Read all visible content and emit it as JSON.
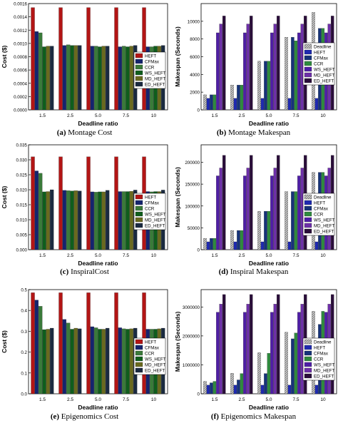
{
  "colors": {
    "HEFT": "#b31515",
    "CFMax": "#15246e",
    "CCR": "#3a7a3a",
    "WS_HEFT": "#0f5e1c",
    "MD_HEFT": "#6a6a1f",
    "ED_HEFT": "#1a2a40",
    "Deadline": "#b8b8b8",
    "HEFT_makespan": "#1f2ab0",
    "CFMax_makespan": "#16337a",
    "CCR_makespan": "#2e8b3e",
    "WS_HEFT_makespan": "#4f1ea6",
    "MD_HEFT_makespan": "#6d2fa8",
    "ED_HEFT_makespan": "#2a0d3a"
  },
  "chart_data": [
    {
      "type": "bar",
      "panel_letter": "(a)",
      "caption": "Montage Cost",
      "xlabel": "Deadline ratio",
      "ylabel": "Cost ($)",
      "categories": [
        "1.5",
        "2.5",
        "5.0",
        "7.5",
        "10"
      ],
      "ylim": [
        0,
        0.0016
      ],
      "yticks": [
        "0.0000",
        "0.0002",
        "0.0004",
        "0.0006",
        "0.0008",
        "0.0010",
        "0.0012",
        "0.0014",
        "0.0016"
      ],
      "legend_position": "right",
      "series": [
        {
          "name": "HEFT",
          "values": [
            0.00154,
            0.00154,
            0.00154,
            0.00154,
            0.00154
          ]
        },
        {
          "name": "CFMax",
          "values": [
            0.00118,
            0.00097,
            0.00096,
            0.00095,
            0.00095
          ]
        },
        {
          "name": "CCR",
          "values": [
            0.00116,
            0.00098,
            0.00096,
            0.00096,
            0.00095
          ]
        },
        {
          "name": "WS_HEFT",
          "values": [
            0.00095,
            0.00097,
            0.00095,
            0.00095,
            0.00096
          ]
        },
        {
          "name": "MD_HEFT",
          "values": [
            0.00096,
            0.00097,
            0.00096,
            0.00096,
            0.00096
          ]
        },
        {
          "name": "ED_HEFT",
          "values": [
            0.00096,
            0.00097,
            0.00096,
            0.00097,
            0.00097
          ]
        }
      ]
    },
    {
      "type": "bar",
      "panel_letter": "(b)",
      "caption": "Montage Makespan",
      "xlabel": "Deadline ratio",
      "ylabel": "Makespan (Seconds)",
      "categories": [
        "1.5",
        "2.5",
        "5.0",
        "7.5",
        "10"
      ],
      "ylim": [
        0,
        12000
      ],
      "yticks": [
        "0",
        "2000",
        "4000",
        "6000",
        "8000",
        "10000"
      ],
      "legend_position": "right",
      "series": [
        {
          "name": "Deadline",
          "values": [
            1700,
            2800,
            5500,
            8200,
            11000
          ]
        },
        {
          "name": "HEFT",
          "values": [
            1300,
            1300,
            1300,
            1300,
            1300
          ]
        },
        {
          "name": "CFMax",
          "values": [
            1700,
            2800,
            5500,
            8200,
            9200
          ]
        },
        {
          "name": "CCR",
          "values": [
            1700,
            2800,
            5500,
            7800,
            9200
          ]
        },
        {
          "name": "WS_HEFT",
          "values": [
            8700,
            8700,
            8700,
            8700,
            8700
          ]
        },
        {
          "name": "MD_HEFT",
          "values": [
            9700,
            9700,
            9700,
            9700,
            9700
          ]
        },
        {
          "name": "ED_HEFT",
          "values": [
            10600,
            10600,
            10600,
            10600,
            10600
          ]
        }
      ]
    },
    {
      "type": "bar",
      "panel_letter": "(c)",
      "caption": "InspiralCost",
      "xlabel": "Deadline ratio",
      "ylabel": "Cost ($)",
      "categories": [
        "1.5",
        "2.5",
        "5.0",
        "7.5",
        "10"
      ],
      "ylim": [
        0,
        0.035
      ],
      "yticks": [
        "0.000",
        "0.005",
        "0.010",
        "0.015",
        "0.020",
        "0.025",
        "0.030",
        "0.035"
      ],
      "legend_position": "right",
      "series": [
        {
          "name": "HEFT",
          "values": [
            0.031,
            0.031,
            0.031,
            0.031,
            0.031
          ]
        },
        {
          "name": "CFMax",
          "values": [
            0.0263,
            0.0198,
            0.0193,
            0.0194,
            0.0194
          ]
        },
        {
          "name": "CCR",
          "values": [
            0.0255,
            0.0197,
            0.0192,
            0.0194,
            0.0193
          ]
        },
        {
          "name": "WS_HEFT",
          "values": [
            0.0193,
            0.0196,
            0.0193,
            0.0194,
            0.0194
          ]
        },
        {
          "name": "MD_HEFT",
          "values": [
            0.0194,
            0.0197,
            0.0193,
            0.0195,
            0.0194
          ]
        },
        {
          "name": "ED_HEFT",
          "values": [
            0.02,
            0.0196,
            0.0198,
            0.0199,
            0.0199
          ]
        }
      ]
    },
    {
      "type": "bar",
      "panel_letter": "(d)",
      "caption": "Inspiral Makespan",
      "xlabel": "Deadline ratio",
      "ylabel": "Makespan (Seconds)",
      "categories": [
        "1.5",
        "2.5",
        "5.0",
        "7.5",
        "10"
      ],
      "ylim": [
        0,
        240000
      ],
      "yticks": [
        "0",
        "50000",
        "100000",
        "150000",
        "200000"
      ],
      "legend_position": "right",
      "series": [
        {
          "name": "Deadline",
          "values": [
            26000,
            44000,
            88000,
            133000,
            177000
          ]
        },
        {
          "name": "HEFT",
          "values": [
            18000,
            18000,
            18000,
            18000,
            18000
          ]
        },
        {
          "name": "CFMax",
          "values": [
            26000,
            44000,
            88000,
            133000,
            177000
          ]
        },
        {
          "name": "CCR",
          "values": [
            26000,
            44000,
            88000,
            133000,
            177000
          ]
        },
        {
          "name": "WS_HEFT",
          "values": [
            169000,
            169000,
            169000,
            169000,
            169000
          ]
        },
        {
          "name": "MD_HEFT",
          "values": [
            187000,
            187000,
            187000,
            187000,
            187000
          ]
        },
        {
          "name": "ED_HEFT",
          "values": [
            216000,
            216000,
            216000,
            216000,
            216000
          ]
        }
      ]
    },
    {
      "type": "bar",
      "panel_letter": "(e)",
      "caption": "Epigenomics Cost",
      "xlabel": "Deadline ratio",
      "ylabel": "Cost ($)",
      "categories": [
        "1.5",
        "2.5",
        "5.0",
        "7.5",
        "10"
      ],
      "ylim": [
        0,
        0.5
      ],
      "yticks": [
        "0.0",
        "0.1",
        "0.2",
        "0.3",
        "0.4",
        "0.5"
      ],
      "legend_position": "right",
      "series": [
        {
          "name": "HEFT",
          "values": [
            0.485,
            0.485,
            0.485,
            0.485,
            0.485
          ]
        },
        {
          "name": "CFMax",
          "values": [
            0.45,
            0.357,
            0.322,
            0.317,
            0.31
          ]
        },
        {
          "name": "CCR",
          "values": [
            0.42,
            0.34,
            0.317,
            0.312,
            0.31
          ]
        },
        {
          "name": "WS_HEFT",
          "values": [
            0.308,
            0.31,
            0.31,
            0.31,
            0.31
          ]
        },
        {
          "name": "MD_HEFT",
          "values": [
            0.31,
            0.315,
            0.31,
            0.312,
            0.312
          ]
        },
        {
          "name": "ED_HEFT",
          "values": [
            0.315,
            0.312,
            0.315,
            0.315,
            0.315
          ]
        }
      ]
    },
    {
      "type": "bar",
      "panel_letter": "(f)",
      "caption": "Epigenomics Makespan",
      "xlabel": "Deadline ratio",
      "ylabel": "Makespan (Seconds)",
      "categories": [
        "1.5",
        "2.5",
        "5.0",
        "7.5",
        "10"
      ],
      "ylim": [
        0,
        3600000
      ],
      "yticks": [
        "0",
        "1000000",
        "2000000",
        "3000000"
      ],
      "legend_position": "right",
      "series": [
        {
          "name": "Deadline",
          "values": [
            430000,
            710000,
            1420000,
            2130000,
            2850000
          ]
        },
        {
          "name": "HEFT",
          "values": [
            300000,
            300000,
            300000,
            300000,
            300000
          ]
        },
        {
          "name": "CFMax",
          "values": [
            380000,
            480000,
            700000,
            1900000,
            2400000
          ]
        },
        {
          "name": "CCR",
          "values": [
            430000,
            700000,
            1400000,
            2100000,
            2850000
          ]
        },
        {
          "name": "WS_HEFT",
          "values": [
            2820000,
            2820000,
            2820000,
            2820000,
            2820000
          ]
        },
        {
          "name": "MD_HEFT",
          "values": [
            3100000,
            3100000,
            3100000,
            3100000,
            3100000
          ]
        },
        {
          "name": "ED_HEFT",
          "values": [
            3430000,
            3430000,
            3430000,
            3430000,
            3430000
          ]
        }
      ]
    }
  ]
}
